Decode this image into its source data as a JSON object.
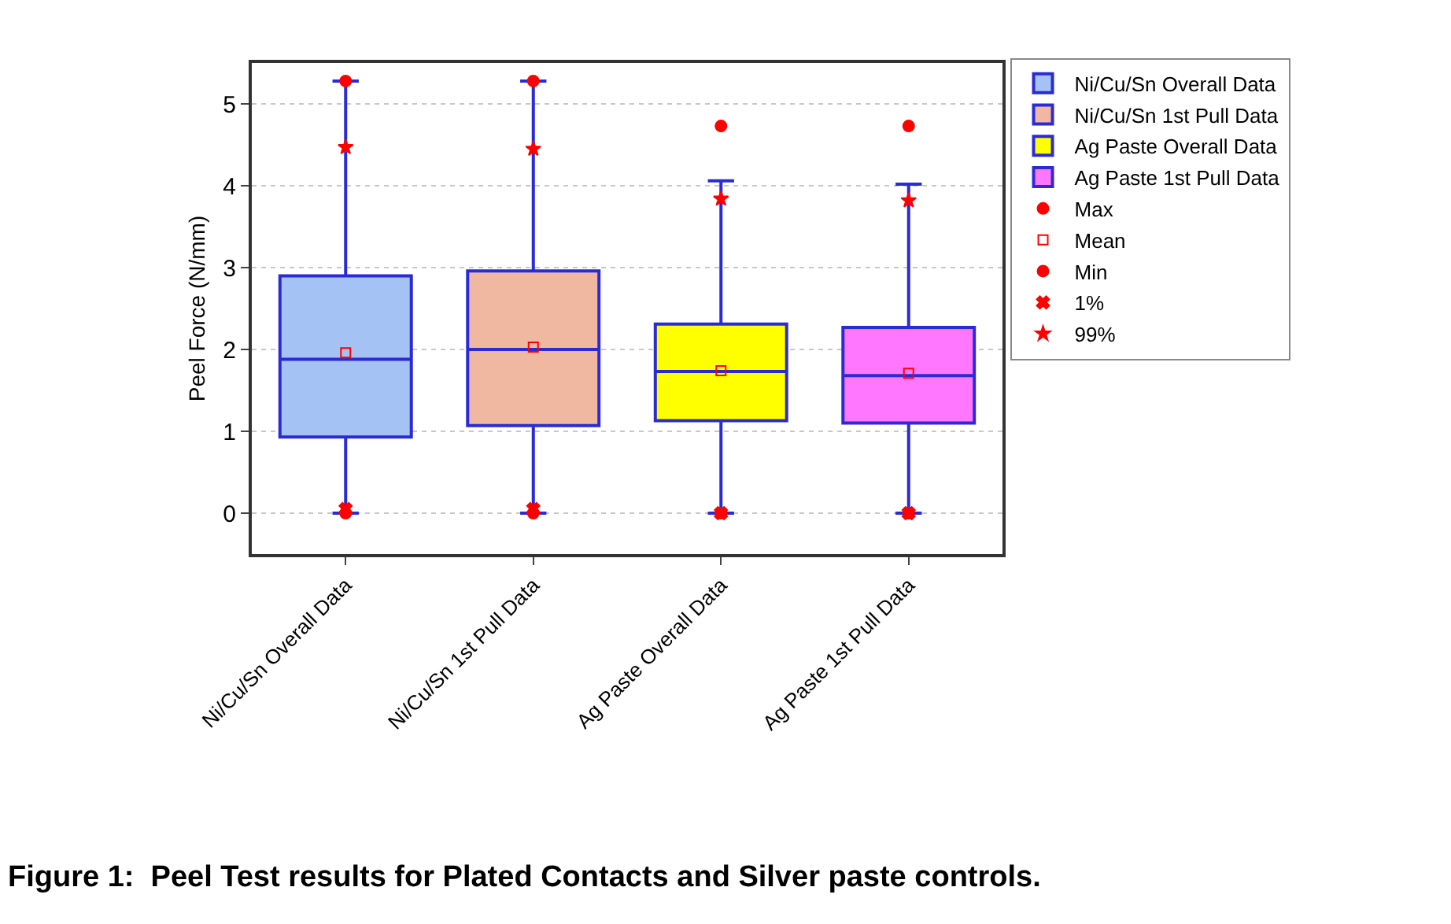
{
  "chart_data": {
    "type": "box",
    "ylabel": "Peel Force (N/mm)",
    "annotations": [
      "Figure 1:  Peel Test results for Plated Contacts and Silver paste controls."
    ],
    "categories": [
      "Ni/Cu/Sn Overall Data",
      "Ni/Cu/Sn 1st Pull Data",
      "Ag Paste Overall Data",
      "Ag Paste 1st Pull Data"
    ],
    "ylim": [
      -0.5,
      5.5
    ],
    "yticks": [
      0,
      1,
      2,
      3,
      4,
      5
    ],
    "grid": "y",
    "legend": "top right",
    "series": [
      {
        "name": "Ni/Cu/Sn Overall Data",
        "color": "#a4c2f4",
        "x": [
          "Ni/Cu/Sn Overall Data"
        ],
        "boxes": [
          {
            "low": 0,
            "q1": 0.93,
            "median": 1.88,
            "q3": 2.9,
            "high": 5.28
          }
        ]
      },
      {
        "name": "Ni/Cu/Sn 1st Pull Data",
        "color": "#f0b8a0",
        "x": [
          "Ni/Cu/Sn 1st Pull Data"
        ],
        "boxes": [
          {
            "low": 0,
            "q1": 1.07,
            "median": 2.0,
            "q3": 2.96,
            "high": 5.28
          }
        ]
      },
      {
        "name": "Ag Paste Overall Data",
        "color": "#ffff00",
        "x": [
          "Ag Paste Overall Data"
        ],
        "boxes": [
          {
            "low": 0,
            "q1": 1.13,
            "median": 1.73,
            "q3": 2.31,
            "high": 4.06
          }
        ]
      },
      {
        "name": "Ag Paste 1st Pull Data",
        "color": "#ff77ff",
        "x": [
          "Ag Paste 1st Pull Data"
        ],
        "boxes": [
          {
            "low": 0,
            "q1": 1.1,
            "median": 1.68,
            "q3": 2.27,
            "high": 4.02
          }
        ]
      },
      {
        "type": "scatter",
        "name": "Max",
        "color": "#ff0000",
        "marker": "circle",
        "x": [
          "Ni/Cu/Sn Overall Data",
          "Ni/Cu/Sn 1st Pull Data",
          "Ag Paste Overall Data",
          "Ag Paste 1st Pull Data"
        ],
        "values": [
          5.28,
          5.28,
          4.73,
          4.73
        ]
      },
      {
        "type": "scatter",
        "name": "Mean",
        "color": "#ff0000",
        "marker": "square",
        "x": [
          "Ni/Cu/Sn Overall Data",
          "Ni/Cu/Sn 1st Pull Data",
          "Ag Paste Overall Data",
          "Ag Paste 1st Pull Data"
        ],
        "values": [
          1.96,
          2.03,
          1.74,
          1.71
        ]
      },
      {
        "type": "scatter",
        "name": "Min",
        "color": "#ff0000",
        "marker": "circle",
        "x": [
          "Ni/Cu/Sn Overall Data",
          "Ni/Cu/Sn 1st Pull Data",
          "Ag Paste Overall Data",
          "Ag Paste 1st Pull Data"
        ],
        "values": [
          0,
          0,
          0,
          0
        ]
      },
      {
        "type": "scatter",
        "name": "1%",
        "color": "#ff0000",
        "marker": "cross",
        "x": [
          "Ni/Cu/Sn Overall Data",
          "Ni/Cu/Sn 1st Pull Data",
          "Ag Paste Overall Data",
          "Ag Paste 1st Pull Data"
        ],
        "values": [
          0.05,
          0.05,
          0,
          0
        ]
      },
      {
        "type": "scatter",
        "name": "99%",
        "color": "#ff0000",
        "marker": "star",
        "x": [
          "Ni/Cu/Sn Overall Data",
          "Ni/Cu/Sn 1st Pull Data",
          "Ag Paste Overall Data",
          "Ag Paste 1st Pull Data"
        ],
        "values": [
          4.47,
          4.45,
          3.84,
          3.82
        ]
      }
    ]
  }
}
